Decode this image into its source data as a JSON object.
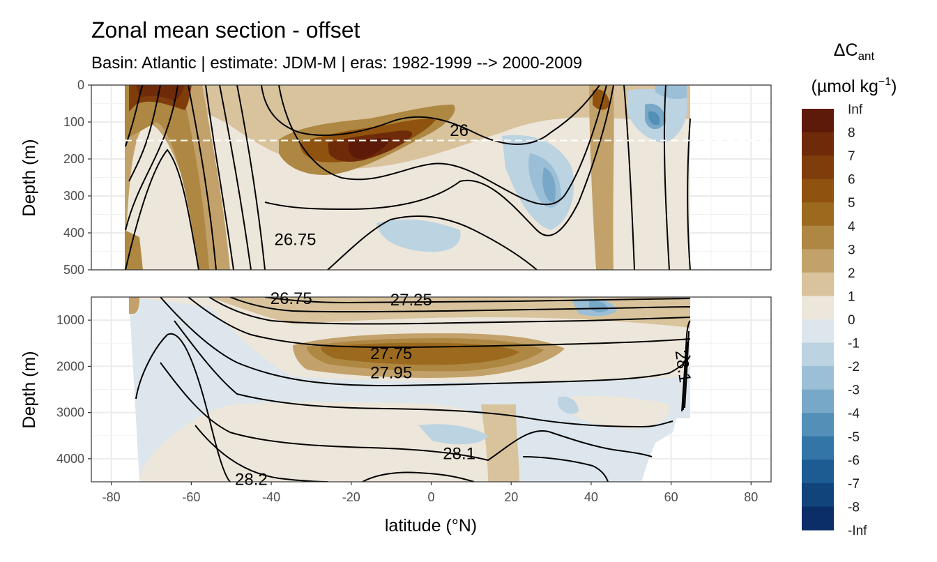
{
  "chart_data": {
    "type": "heatmap",
    "title": "Zonal mean section - offset",
    "subtitle": "Basin: Atlantic | estimate: JDM-M | eras: 1982-1999 --> 2000-2009",
    "xlabel": "latitude (°N)",
    "x_ticks": [
      -80,
      -60,
      -40,
      -20,
      0,
      20,
      40,
      60,
      80
    ],
    "xlim": [
      -85,
      85
    ],
    "panels": [
      {
        "name": "upper",
        "ylabel": "Depth (m)",
        "ylim": [
          500,
          0
        ],
        "y_ticks": [
          0,
          100,
          200,
          300,
          400,
          500
        ],
        "dashed_line_depth": 150,
        "contour_labels": [
          {
            "text": "26",
            "lat": 7,
            "depth": 123
          },
          {
            "text": "26.75",
            "lat": -34,
            "depth": 418
          }
        ]
      },
      {
        "name": "lower",
        "ylabel": "Depth (m)",
        "ylim": [
          4500,
          500
        ],
        "y_ticks": [
          1000,
          2000,
          3000,
          4000
        ],
        "contour_labels": [
          {
            "text": "26.75",
            "lat": -35,
            "depth": 530
          },
          {
            "text": "27.25",
            "lat": -5,
            "depth": 560
          },
          {
            "text": "27.75",
            "lat": -10,
            "depth": 1720
          },
          {
            "text": "27.95",
            "lat": -10,
            "depth": 2140
          },
          {
            "text": "28.1",
            "lat": 7,
            "depth": 3890
          },
          {
            "text": "28.2",
            "lat": -45,
            "depth": 4450
          },
          {
            "text": "28.1",
            "lat": 63,
            "depth": 2000
          }
        ]
      }
    ],
    "legend": {
      "title_main": "ΔC",
      "title_sub": "ant",
      "units_pre": "(µmol kg",
      "units_sup": "−1",
      "units_post": ")",
      "placement": "right",
      "bins": [
        {
          "label": "Inf",
          "color": "#5e1a08"
        },
        {
          "label": "8",
          "color": "#6f2a0a"
        },
        {
          "label": "7",
          "color": "#7f3d0c"
        },
        {
          "label": "6",
          "color": "#8f520f"
        },
        {
          "label": "5",
          "color": "#9b6a1f"
        },
        {
          "label": "4",
          "color": "#ae8742"
        },
        {
          "label": "3",
          "color": "#c2a26a"
        },
        {
          "label": "2",
          "color": "#d8c39d"
        },
        {
          "label": "1",
          "color": "#ede6da"
        },
        {
          "label": "0",
          "color": "#dde6ec"
        },
        {
          "label": "-1",
          "color": "#bcd3e2"
        },
        {
          "label": "-2",
          "color": "#9bbfd6"
        },
        {
          "label": "-3",
          "color": "#78a8c8"
        },
        {
          "label": "-4",
          "color": "#548fb8"
        },
        {
          "label": "-5",
          "color": "#3375a6"
        },
        {
          "label": "-6",
          "color": "#1d5c92"
        },
        {
          "label": "-7",
          "color": "#12447c"
        },
        {
          "label": "-8",
          "color": "#0b2e66"
        },
        {
          "label": "-Inf",
          "color": "#041a52"
        }
      ]
    }
  }
}
